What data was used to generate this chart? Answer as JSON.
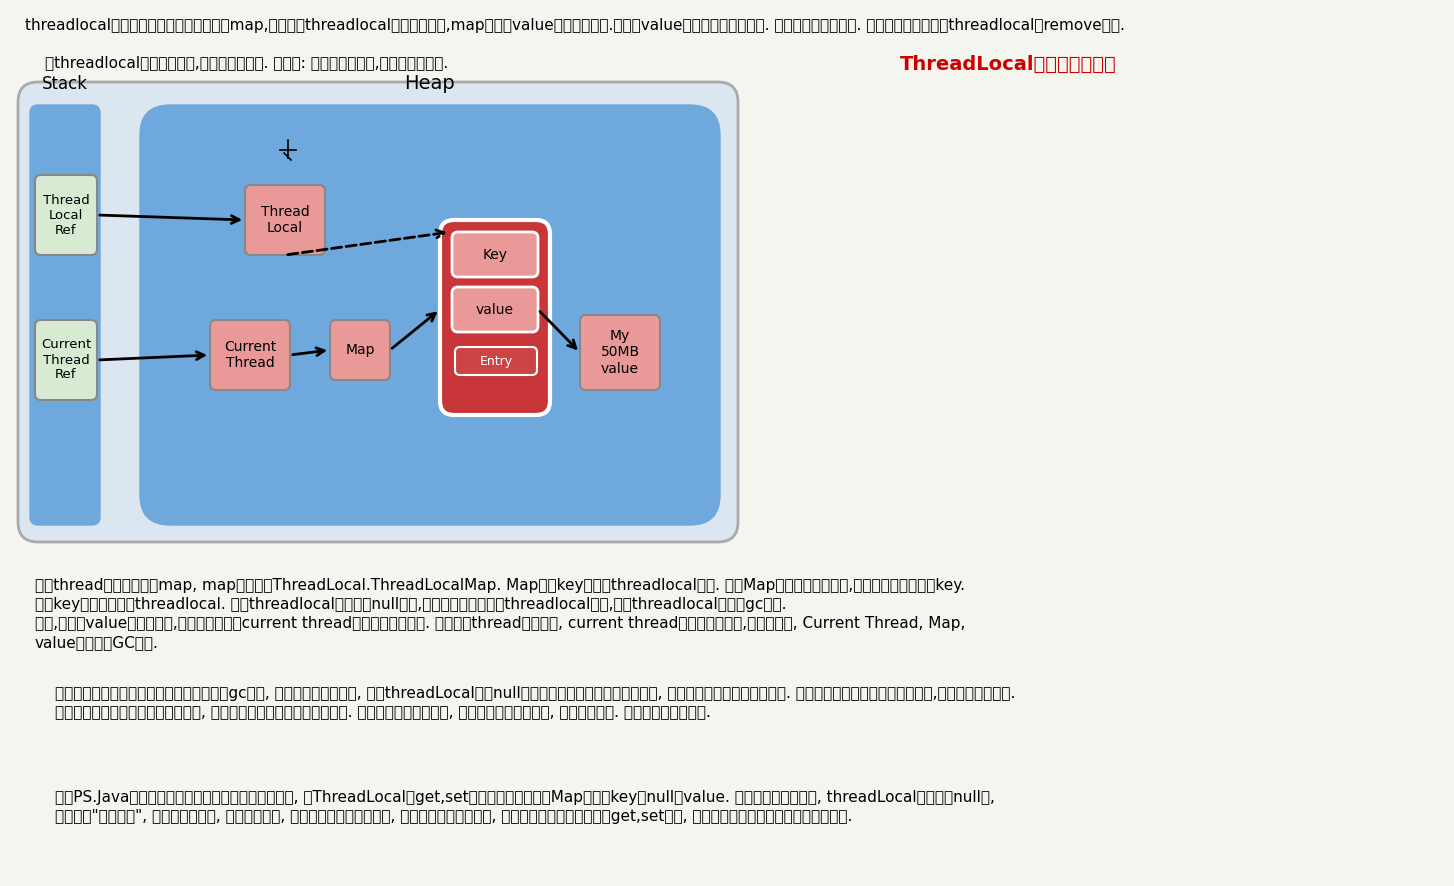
{
  "bg_color": "#f5f5f0",
  "title_text": "ThreadLocal引起的内存泄漏",
  "title_color": "#cc0000",
  "top_para1": "threadlocal里面使用了一个存在弱引用的map,当释放掉threadlocal的强引用以后,map里面的value却没有被回收.而这块value永远不会被访问到了. 所以存在着内存泄露. 最好的做法是将调用threadlocal的remove方法.",
  "top_para2": "在threadlocal的生命周期中,都存在这些引用. 看下图: 实线代表强引用,虚线代表弱引用.",
  "heap_bg": "#6fa8dc",
  "stack_bg": "#6fa8dc",
  "heap_label": "Heap",
  "stack_label": "Stack",
  "box_thread_local_ref": {
    "label": "Thread\nLocal\nRef",
    "color": "#d9ead3",
    "border": "#888888"
  },
  "box_current_thread_ref": {
    "label": "Current\nThread\nRef",
    "color": "#d9ead3",
    "border": "#888888"
  },
  "box_thread_local": {
    "label": "Thread\nLocal",
    "color": "#ea9999",
    "border": "#888888"
  },
  "box_current_thread": {
    "label": "Current\nThread",
    "color": "#ea9999",
    "border": "#888888"
  },
  "box_map": {
    "label": "Map",
    "color": "#ea9999",
    "border": "#888888"
  },
  "box_key": {
    "label": "Key",
    "color": "#ea9999",
    "border": "#888888"
  },
  "box_value": {
    "label": "value",
    "color": "#ea9999",
    "border": "#888888"
  },
  "box_entry": {
    "label": "Entry",
    "color": "#cc4444",
    "border": "#ffffff",
    "text_color": "#ffffff"
  },
  "box_entry_outer": {
    "color": "#c9363a",
    "border": "#ffffff"
  },
  "box_my50mb": {
    "label": "My\n50MB\nvalue",
    "color": "#ea9999",
    "border": "#888888"
  },
  "para3": "每个thread中都存在一个map, map的类型是ThreadLocal.ThreadLocalMap. Map中的key为一个threadlocal实例. 这个Map的确使用了弱引用,不过弱引用只是针对key. 每个key都弱引用指向threadlocal. 当抋threadlocal实例置为null以后,没有任何强引用指向threadlocal实例,所以threadlocal将会被gc回收. 但是,我们的value却不能回收,因为存在一条从current thread连接过来的强引用. 只有当前thread结束以后, current thread就不会存在栖中,强引用断开, Current Thread, Map, value将全部被GC回收.",
  "para4": "所以得出一个结论就是只要这个线程对象被gc回收, 就不会出现内存泄露, 但在threadLocal设为null和线程结束这段时间不会被回收的, 就发生了我们认为的内存泄露. 其实这是一个对概念理解的不一致,也没什么好争论的. 最要命的是线程对象不被回收的情况, 这就发生了真正意义上的内存泄露. 比如使用线程池的时候, 线程结束是不会销毁的, 会再次使用的. 就可能出现内存泄露.",
  "para5": "　　PS.Java为了最小化减少内存泄露的可能性和影响, 在ThreadLocal的get,set的时候都会清除线程Map里所有key为null的value. 所以最怕的情况就是, threadLocal对象设为null了, 开始发生\"内存泄露\", 然后使用线程池, 这个线程结束, 线程放回线程池中不销毁, 这个线程一直不被使用, 或者分配使用了又不再调用get,set方法, 那么这个期间就会发生真正的内存泄露."
}
